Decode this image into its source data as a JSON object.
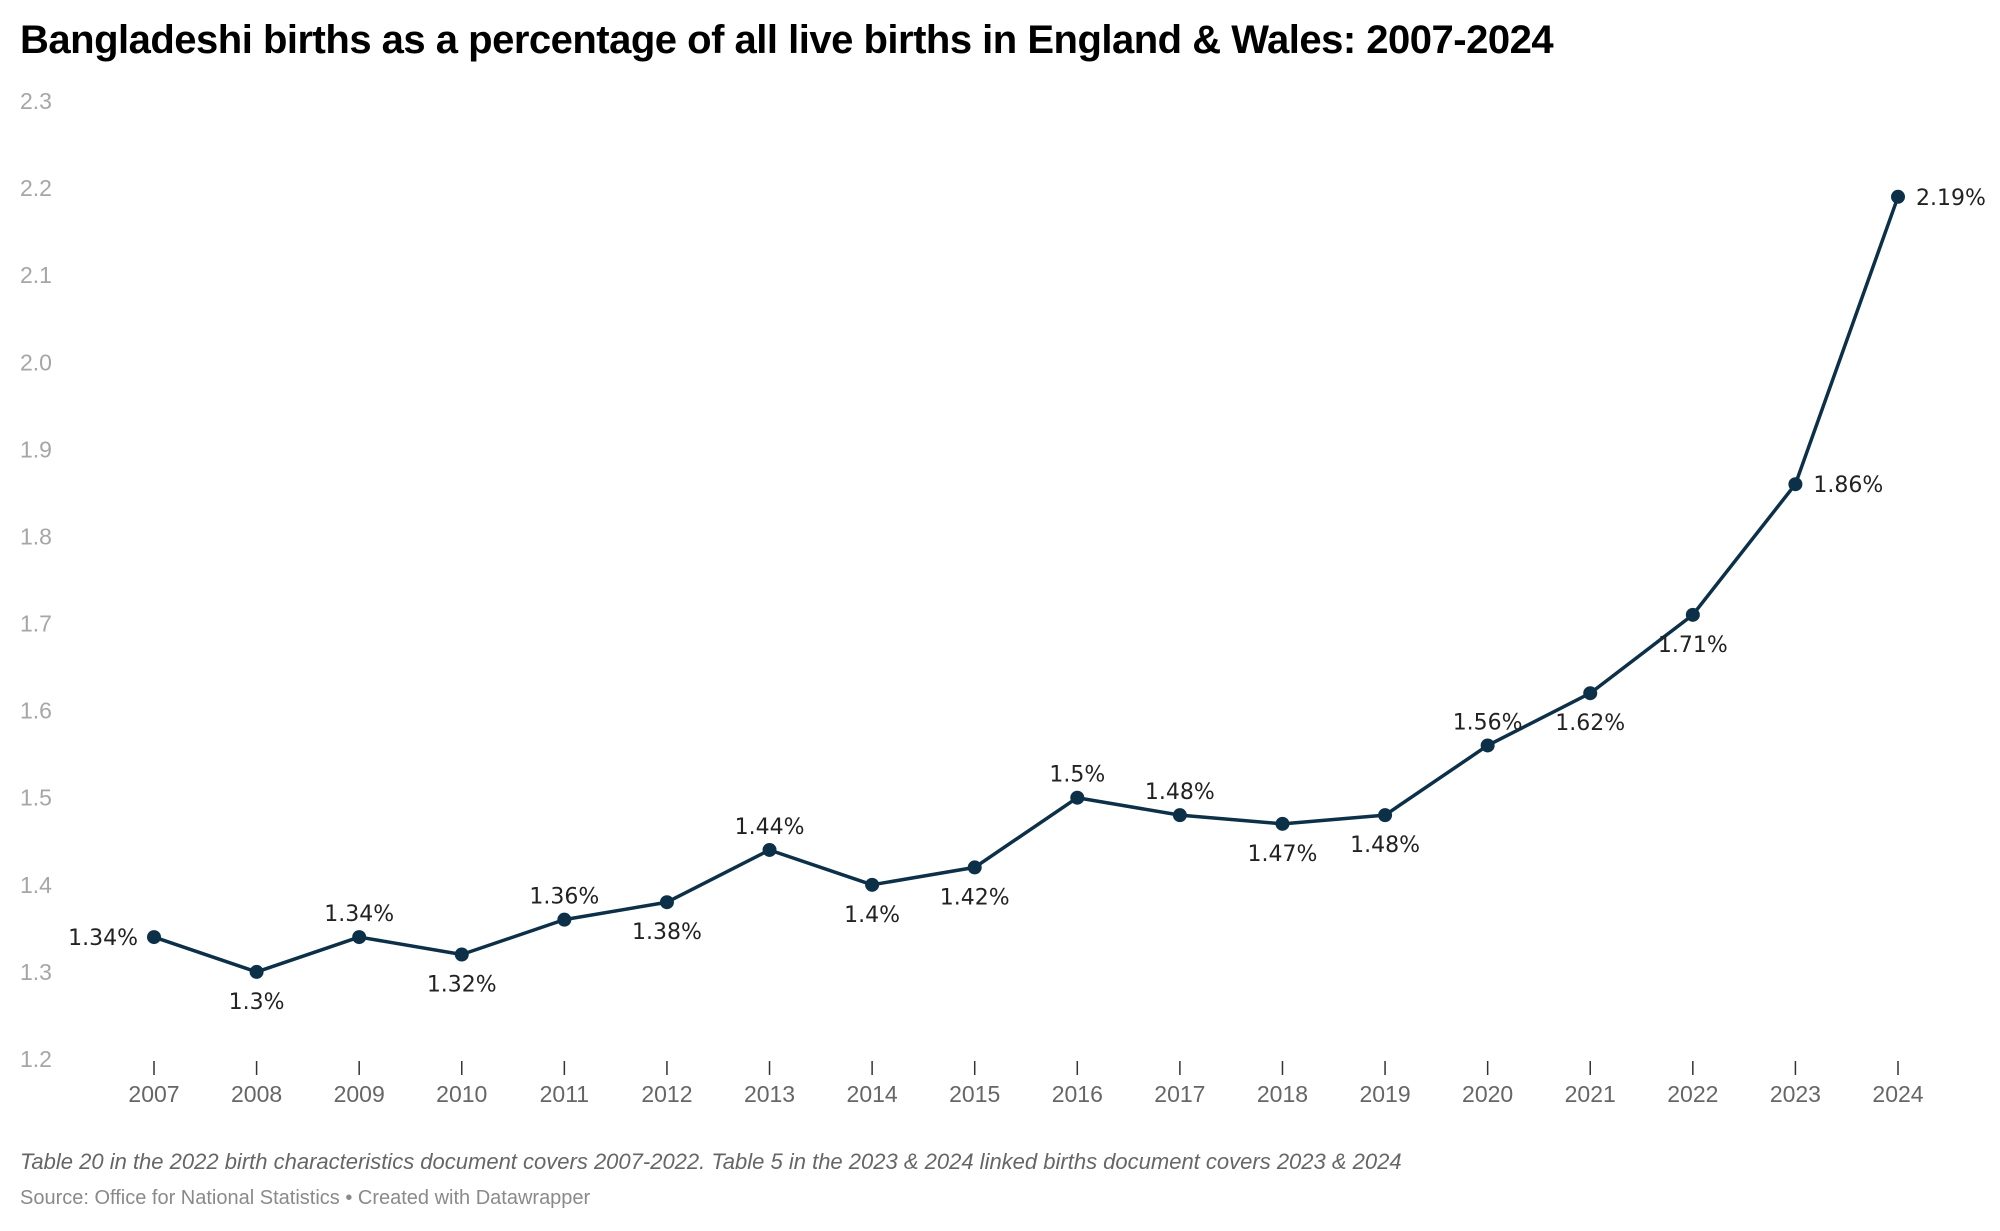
{
  "header": {
    "title": "Bangladeshi births as a percentage of all live births in England & Wales: 2007-2024"
  },
  "footer": {
    "note": "Table 20 in the 2022 birth characteristics document covers 2007-2022. Table 5 in the 2023 & 2024 linked births document covers 2023 & 2024",
    "source": "Source: Office for National Statistics • Created with Datawrapper"
  },
  "colors": {
    "line": "#0d3049"
  },
  "chart_data": {
    "type": "line",
    "title": "Bangladeshi births as a percentage of all live births in England & Wales: 2007-2024",
    "xlabel": "",
    "ylabel": "",
    "x": [
      "2007",
      "2008",
      "2009",
      "2010",
      "2011",
      "2012",
      "2013",
      "2014",
      "2015",
      "2016",
      "2017",
      "2018",
      "2019",
      "2020",
      "2021",
      "2022",
      "2023",
      "2024"
    ],
    "series": [
      {
        "name": "Bangladeshi births (% of all live births)",
        "values": [
          1.34,
          1.3,
          1.34,
          1.32,
          1.36,
          1.38,
          1.44,
          1.4,
          1.42,
          1.5,
          1.48,
          1.47,
          1.48,
          1.56,
          1.62,
          1.71,
          1.86,
          2.19
        ],
        "labels": [
          "1.34%",
          "1.3%",
          "1.34%",
          "1.32%",
          "1.36%",
          "1.38%",
          "1.44%",
          "1.4%",
          "1.42%",
          "1.5%",
          "1.48%",
          "1.47%",
          "1.48%",
          "1.56%",
          "1.62%",
          "1.71%",
          "1.86%",
          "2.19%"
        ],
        "label_positions": [
          "left",
          "below",
          "above",
          "below",
          "above",
          "below",
          "above",
          "below",
          "below",
          "above",
          "above",
          "below",
          "below",
          "above",
          "below",
          "below",
          "right",
          "right"
        ]
      }
    ],
    "yticks": [
      "2.3",
      "2.2",
      "2.1",
      "2.0",
      "1.9",
      "1.8",
      "1.7",
      "1.6",
      "1.5",
      "1.4",
      "1.3",
      "1.2"
    ],
    "ylim": [
      1.2,
      2.3
    ],
    "grid": false,
    "legend": "none"
  }
}
